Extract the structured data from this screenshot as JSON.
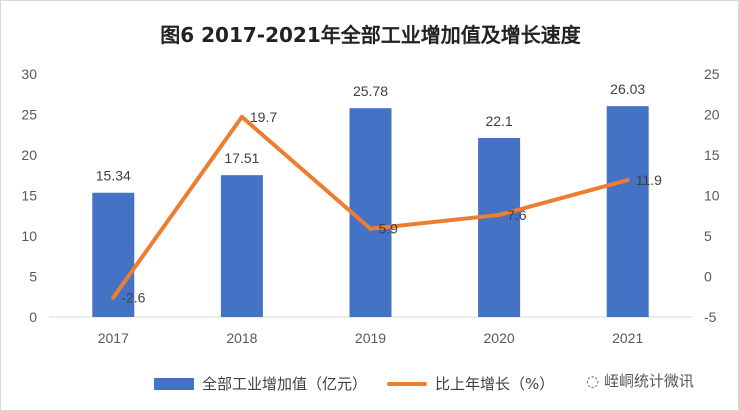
{
  "chart_data": {
    "type": "bar+line",
    "title": "图6  2017-2021年全部工业增加值及增长速度",
    "categories": [
      "2017",
      "2018",
      "2019",
      "2020",
      "2021"
    ],
    "series": [
      {
        "name": "全部工业增加值（亿元）",
        "type": "bar",
        "axis": "left",
        "color": "#4472C4",
        "values": [
          15.34,
          17.51,
          25.78,
          22.1,
          26.03
        ],
        "labels": [
          "15.34",
          "17.51",
          "25.78",
          "22.1",
          "26.03"
        ]
      },
      {
        "name": "比上年增长（%）",
        "type": "line",
        "axis": "right",
        "color": "#ED7D31",
        "values": [
          -2.6,
          19.7,
          5.9,
          7.6,
          11.9
        ],
        "labels": [
          "-2.6",
          "19.7",
          "5.9",
          "7.6",
          "11.9"
        ]
      }
    ],
    "y_left": {
      "lim": [
        0,
        30
      ],
      "ticks": [
        "0",
        "5",
        "10",
        "15",
        "20",
        "25",
        "30"
      ]
    },
    "y_right": {
      "lim": [
        -5,
        25
      ],
      "ticks": [
        "-5",
        "0",
        "5",
        "10",
        "15",
        "20",
        "25"
      ]
    },
    "grid": false,
    "legend": "bottom"
  },
  "watermark": "峌峒统计微讯"
}
